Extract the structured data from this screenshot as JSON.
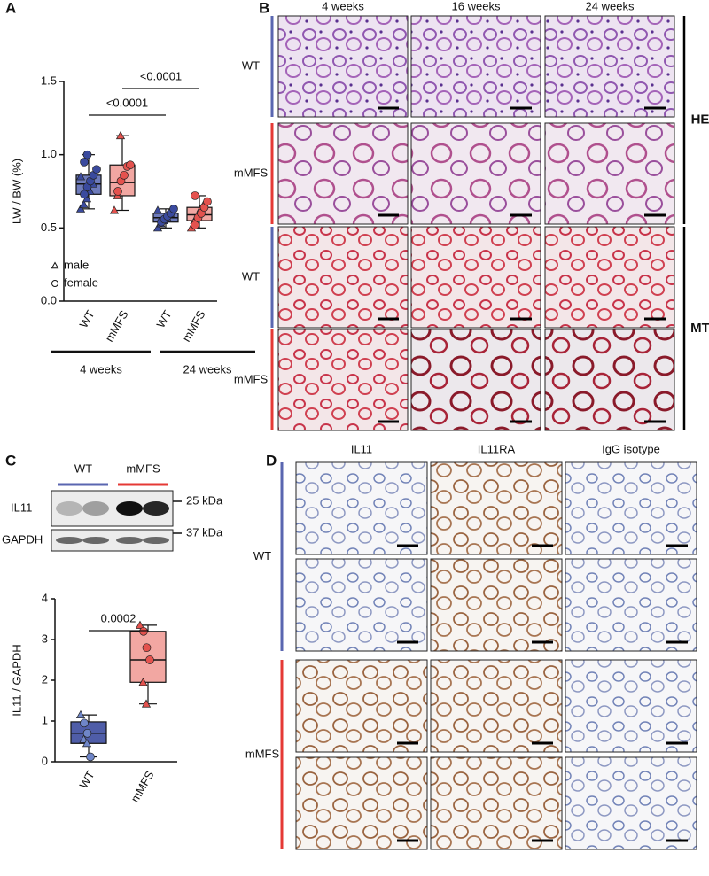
{
  "panel_labels": [
    "A",
    "B",
    "C",
    "D"
  ],
  "chart_data": [
    {
      "type": "box",
      "y_label": "LW / BW (%)",
      "categories": [
        "WT",
        "mMFS",
        "WT",
        "mMFS"
      ],
      "groups": [
        "4 weeks",
        "24 weeks"
      ],
      "ylim": [
        0,
        1.5
      ],
      "yticks": [
        {
          "value": 0,
          "label": "0.0"
        },
        0.5,
        {
          "value": 1,
          "label": "1.0"
        },
        1.5
      ],
      "series": [
        {
          "name": "male",
          "marker": "triangle"
        },
        {
          "name": "female",
          "marker": "circle"
        }
      ],
      "annotations": [
        "<0.0001",
        "<0.0001"
      ],
      "boxes": [
        {
          "min": 0.63,
          "q1": 0.73,
          "median": 0.8,
          "q3": 0.86,
          "max": 1.0,
          "color": "#6e7bbb",
          "point_color": "#3a4a9e",
          "points": [
            [
              0.63,
              0.66,
              0.7,
              0.75,
              0.8,
              0.85
            ],
            [
              0.73,
              0.78,
              0.82,
              0.86,
              0.9,
              0.95,
              1.0
            ]
          ]
        },
        {
          "min": 0.62,
          "q1": 0.72,
          "median": 0.81,
          "q3": 0.93,
          "max": 1.13,
          "color": "#f2a7a2",
          "point_color": "#e4524e",
          "points": [
            [
              0.62,
              0.72,
              1.13
            ],
            [
              0.75,
              0.82,
              0.86,
              0.92,
              0.93
            ]
          ]
        },
        {
          "min": 0.5,
          "q1": 0.54,
          "median": 0.57,
          "q3": 0.6,
          "max": 0.63,
          "color": "#6e7bbb",
          "point_color": "#3a4a9e",
          "points": [
            [
              0.5,
              0.53,
              0.55,
              0.57,
              0.6,
              0.62
            ],
            [
              0.54,
              0.56,
              0.58,
              0.6,
              0.63
            ]
          ]
        },
        {
          "min": 0.5,
          "q1": 0.55,
          "median": 0.59,
          "q3": 0.64,
          "max": 0.72,
          "color": "#f2a7a2",
          "point_color": "#e4524e",
          "points": [
            [
              0.5,
              0.55,
              0.58,
              0.63,
              0.66
            ],
            [
              0.52,
              0.57,
              0.6,
              0.64,
              0.68,
              0.72
            ]
          ]
        }
      ]
    },
    {
      "type": "box",
      "y_label": "IL11 / GAPDH",
      "categories": [
        "WT",
        "mMFS"
      ],
      "ylim": [
        0,
        4
      ],
      "yticks": [
        0,
        1,
        2,
        3,
        4
      ],
      "annotations": [
        "0.0002"
      ],
      "boxes": [
        {
          "min": 0.12,
          "q1": 0.45,
          "median": 0.7,
          "q3": 0.98,
          "max": 1.15,
          "color": "#4f5da8",
          "point_color": "#6f86c8",
          "points": [
            [
              1.15,
              0.55,
              0.45
            ],
            [
              0.95,
              0.7,
              0.12
            ]
          ]
        },
        {
          "min": 1.42,
          "q1": 1.95,
          "median": 2.5,
          "q3": 3.2,
          "max": 3.35,
          "color": "#f2a7a2",
          "point_color": "#e4524e",
          "points": [
            [
              3.35,
              1.95,
              1.42
            ],
            [
              3.2,
              2.8,
              2.5
            ]
          ]
        }
      ]
    }
  ],
  "panel_b": {
    "columns": [
      "4 weeks",
      "16 weeks",
      "24 weeks"
    ],
    "rows": [
      "WT",
      "mMFS",
      "WT",
      "mMFS"
    ],
    "stains": [
      "HE",
      "MT"
    ]
  },
  "panel_c_blot": {
    "groups": [
      "WT",
      "mMFS"
    ],
    "rows": [
      "IL11",
      "GAPDH"
    ],
    "markers": [
      "25 kDa",
      "37 kDa"
    ]
  },
  "panel_d": {
    "columns": [
      "IL11",
      "IL11RA",
      "IgG isotype"
    ],
    "rows": [
      "WT",
      "mMFS"
    ]
  }
}
